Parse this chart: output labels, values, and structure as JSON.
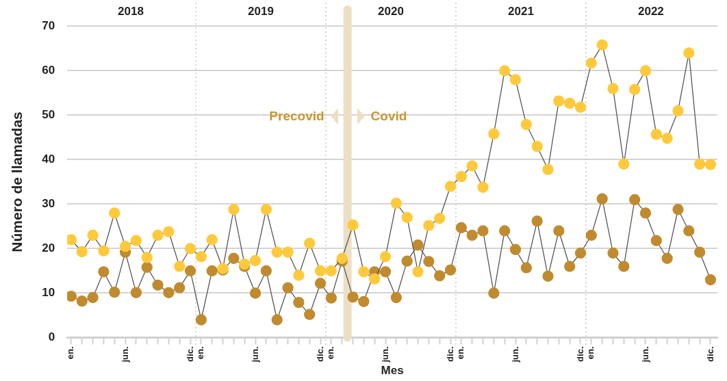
{
  "chart_data": {
    "type": "line",
    "xlabel": "Mes",
    "ylabel": "Número de llamadas",
    "x": [
      "2018-01",
      "2018-02",
      "2018-03",
      "2018-04",
      "2018-05",
      "2018-06",
      "2018-07",
      "2018-08",
      "2018-09",
      "2018-10",
      "2018-11",
      "2018-12",
      "2019-01",
      "2019-02",
      "2019-03",
      "2019-04",
      "2019-05",
      "2019-06",
      "2019-07",
      "2019-08",
      "2019-09",
      "2019-10",
      "2019-11",
      "2019-12",
      "2020-01",
      "2020-02",
      "2020-03",
      "2020-04",
      "2020-05",
      "2020-06",
      "2020-07",
      "2020-08",
      "2020-09",
      "2020-10",
      "2020-11",
      "2020-12",
      "2021-01",
      "2021-02",
      "2021-03",
      "2021-04",
      "2021-05",
      "2021-06",
      "2021-07",
      "2021-08",
      "2021-09",
      "2021-10",
      "2021-11",
      "2021-12",
      "2022-01",
      "2022-02",
      "2022-03",
      "2022-04",
      "2022-05",
      "2022-06",
      "2022-07",
      "2022-08",
      "2022-09",
      "2022-10",
      "2022-11",
      "2022-12"
    ],
    "series": [
      {
        "color": "#ffc93c",
        "values": [
          22,
          19.3,
          23,
          19.5,
          28,
          20.5,
          21.8,
          18,
          23,
          23.8,
          16,
          20,
          18.2,
          22,
          15.5,
          28.8,
          16.5,
          17.3,
          28.8,
          19.2,
          19.2,
          14,
          21.2,
          15,
          15,
          17.8,
          25.3,
          14.8,
          13.2,
          18.2,
          30.2,
          27,
          14.8,
          25.2,
          26.8,
          34,
          36.2,
          38.6,
          33.8,
          45.8,
          60,
          58,
          47.9,
          43,
          37.8,
          53.2,
          52.7,
          51.8,
          61.7,
          65.8,
          56,
          39,
          55.8,
          60,
          45.7,
          44.8,
          51,
          64,
          39,
          38.9
        ]
      },
      {
        "color": "#c08b2f",
        "values": [
          9.3,
          8.2,
          9,
          14.8,
          10.2,
          19.2,
          10.1,
          15.8,
          11.8,
          10.1,
          11.2,
          15,
          4,
          15,
          15.2,
          17.8,
          16,
          10,
          15,
          4,
          11.2,
          7.9,
          5.2,
          12.2,
          8.9,
          17.2,
          9.1,
          8.1,
          14.8,
          14.8,
          9,
          17.2,
          20.8,
          17.1,
          13.9,
          15.2,
          24.7,
          23,
          24,
          10,
          24,
          19.8,
          15.7,
          26.2,
          13.8,
          24,
          16,
          19,
          23,
          31.2,
          19,
          16,
          31,
          28,
          21.8,
          17.8,
          28.8,
          24,
          19.2,
          13
        ]
      }
    ],
    "ylim": [
      0,
      70
    ],
    "yticks": [
      0,
      10,
      20,
      30,
      40,
      50,
      60,
      70
    ],
    "xlim": [
      "2017-12-20",
      "2022-12-20"
    ],
    "xticks": [
      {
        "value": "2018-01",
        "label": "en."
      },
      {
        "value": "2018-02",
        "label": null
      },
      {
        "value": "2018-03",
        "label": null
      },
      {
        "value": "2018-04",
        "label": null
      },
      {
        "value": "2018-05",
        "label": null
      },
      {
        "value": "2018-06",
        "label": "jun."
      },
      {
        "value": "2018-07",
        "label": null
      },
      {
        "value": "2018-08",
        "label": null
      },
      {
        "value": "2018-09",
        "label": null
      },
      {
        "value": "2018-10",
        "label": null
      },
      {
        "value": "2018-11",
        "label": null
      },
      {
        "value": "2018-12",
        "label": "dic."
      },
      {
        "value": "2019-01",
        "label": "en."
      },
      {
        "value": "2019-02",
        "label": null
      },
      {
        "value": "2019-03",
        "label": null
      },
      {
        "value": "2019-04",
        "label": null
      },
      {
        "value": "2019-05",
        "label": null
      },
      {
        "value": "2019-06",
        "label": "jun."
      },
      {
        "value": "2019-07",
        "label": null
      },
      {
        "value": "2019-08",
        "label": null
      },
      {
        "value": "2019-09",
        "label": null
      },
      {
        "value": "2019-10",
        "label": null
      },
      {
        "value": "2019-11",
        "label": null
      },
      {
        "value": "2019-12",
        "label": "dic."
      },
      {
        "value": "2020-01",
        "label": "en."
      },
      {
        "value": "2020-02",
        "label": null
      },
      {
        "value": "2020-03",
        "label": null
      },
      {
        "value": "2020-04",
        "label": null
      },
      {
        "value": "2020-05",
        "label": null
      },
      {
        "value": "2020-06",
        "label": "jun."
      },
      {
        "value": "2020-07",
        "label": null
      },
      {
        "value": "2020-08",
        "label": null
      },
      {
        "value": "2020-09",
        "label": null
      },
      {
        "value": "2020-10",
        "label": null
      },
      {
        "value": "2020-11",
        "label": null
      },
      {
        "value": "2020-12",
        "label": "dic."
      },
      {
        "value": "2021-01",
        "label": "en."
      },
      {
        "value": "2021-02",
        "label": null
      },
      {
        "value": "2021-03",
        "label": null
      },
      {
        "value": "2021-04",
        "label": null
      },
      {
        "value": "2021-05",
        "label": null
      },
      {
        "value": "2021-06",
        "label": "jun."
      },
      {
        "value": "2021-07",
        "label": null
      },
      {
        "value": "2021-08",
        "label": null
      },
      {
        "value": "2021-09",
        "label": null
      },
      {
        "value": "2021-10",
        "label": null
      },
      {
        "value": "2021-11",
        "label": null
      },
      {
        "value": "2021-12",
        "label": "dic."
      },
      {
        "value": "2022-01",
        "label": "en."
      },
      {
        "value": "2022-02",
        "label": null
      },
      {
        "value": "2022-03",
        "label": null
      },
      {
        "value": "2022-04",
        "label": null
      },
      {
        "value": "2022-05",
        "label": null
      },
      {
        "value": "2022-06",
        "label": "jun."
      },
      {
        "value": "2022-07",
        "label": null
      },
      {
        "value": "2022-08",
        "label": null
      },
      {
        "value": "2022-09",
        "label": null
      },
      {
        "value": "2022-10",
        "label": null
      },
      {
        "value": "2022-11",
        "label": null
      },
      {
        "value": "2022-12",
        "label": "dic."
      }
    ],
    "x2lim": [
      "2017-12-20",
      "2022-12-20"
    ],
    "x2ticks": [
      {
        "value": "2018-06-16",
        "label": "2018"
      },
      {
        "value": "2019-06-16",
        "label": "2019"
      },
      {
        "value": "2020-06-16",
        "label": "2020"
      },
      {
        "value": "2021-06-16",
        "label": "2021"
      },
      {
        "value": "2022-06-16",
        "label": "2022"
      }
    ],
    "ref_lines": [
      {
        "axis": "x",
        "value": "2018-12-16",
        "color": "#c8c8c8",
        "line_style": "dotted"
      },
      {
        "axis": "x",
        "value": "2019-12-16",
        "color": "#c8c8c8",
        "line_style": "dotted"
      },
      {
        "axis": "x",
        "value": "2020-12-16",
        "color": "#c8c8c8",
        "line_style": "dotted"
      },
      {
        "axis": "x",
        "value": "2021-12-16",
        "color": "#c8c8c8",
        "line_style": "dotted"
      },
      {
        "axis": "x",
        "value": "2020-02-16",
        "color": "#ecdfc4",
        "line_style": "solid"
      }
    ],
    "annotations": [
      "Precovid",
      "Covid"
    ],
    "grid": "y",
    "legend": false,
    "marker": "circle",
    "line_style": "solid"
  }
}
